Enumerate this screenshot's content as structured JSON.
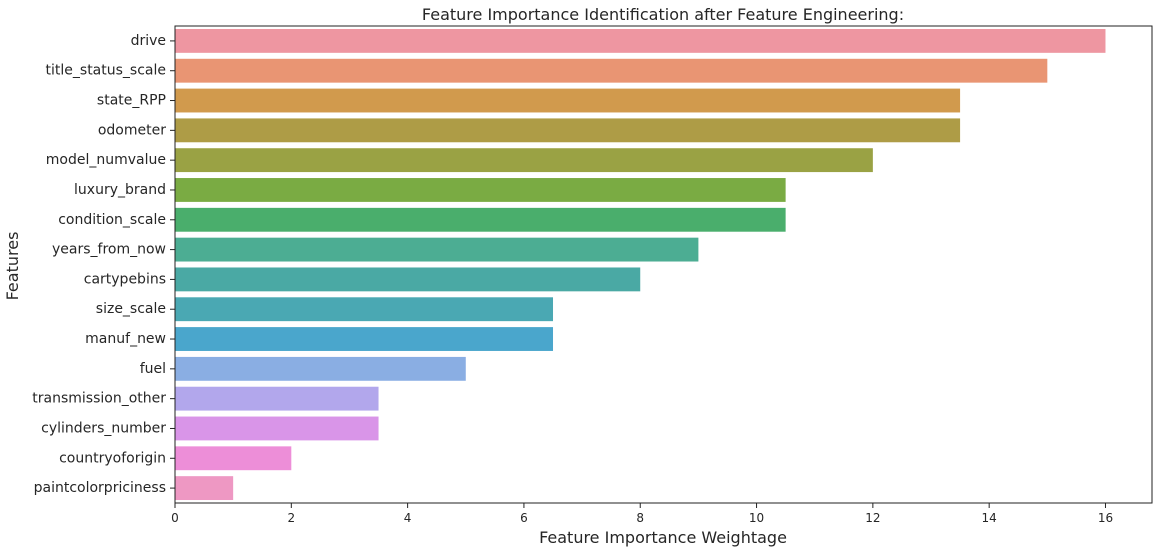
{
  "chart_data": {
    "type": "bar",
    "orientation": "horizontal",
    "title": "Feature Importance Identification after Feature Engineering:",
    "xlabel": "Feature Importance Weightage",
    "ylabel": "Features",
    "xlim": [
      0,
      16.8
    ],
    "xticks": [
      0,
      2,
      4,
      6,
      8,
      10,
      12,
      14,
      16
    ],
    "grid": false,
    "categories": [
      "drive",
      "title_status_scale",
      "state_RPP",
      "odometer",
      "model_numvalue",
      "luxury_brand",
      "condition_scale",
      "years_from_now",
      "cartypebins",
      "size_scale",
      "manuf_new",
      "fuel",
      "transmission_other",
      "cylinders_number",
      "countryoforigin",
      "paintcolorpriciness"
    ],
    "values": [
      16,
      15,
      13.5,
      13.5,
      12,
      10.5,
      10.5,
      9,
      8,
      6.5,
      6.5,
      5,
      3.5,
      3.5,
      2,
      1
    ],
    "colors": [
      "#ee96a1",
      "#e99573",
      "#d19a4d",
      "#ae9c46",
      "#9aa244",
      "#7aab43",
      "#4aae6c",
      "#4cad93",
      "#4aa9a4",
      "#4aa8b3",
      "#4aa6cc",
      "#8aaee3",
      "#b2a7ec",
      "#d995e8",
      "#ed8ed8",
      "#ee98c3"
    ]
  }
}
